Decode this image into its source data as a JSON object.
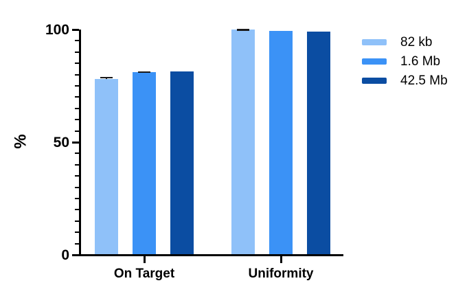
{
  "chart_data": {
    "type": "bar",
    "title": "",
    "categories": [
      "On Target",
      "Uniformity"
    ],
    "series": [
      {
        "name": "82 kb",
        "color": "#8FC1F9",
        "values": [
          78,
          100
        ],
        "errors": [
          1,
          0.3
        ]
      },
      {
        "name": "1.6 Mb",
        "color": "#3B92F6",
        "values": [
          81,
          99.5
        ],
        "errors": [
          0.5,
          0
        ]
      },
      {
        "name": "42.5 Mb",
        "color": "#0B4DA2",
        "values": [
          81.5,
          99
        ],
        "errors": [
          0,
          0
        ]
      }
    ],
    "xlabel": "",
    "ylabel": "%",
    "ylim": [
      0,
      100
    ],
    "yticks": [
      0,
      50,
      100
    ],
    "ytick_labels": [
      "0",
      "50",
      "100"
    ],
    "minor_tick_step": 5,
    "grid": false,
    "legend_position": "right",
    "axis_color": "#000000",
    "background_color": "#ffffff"
  }
}
